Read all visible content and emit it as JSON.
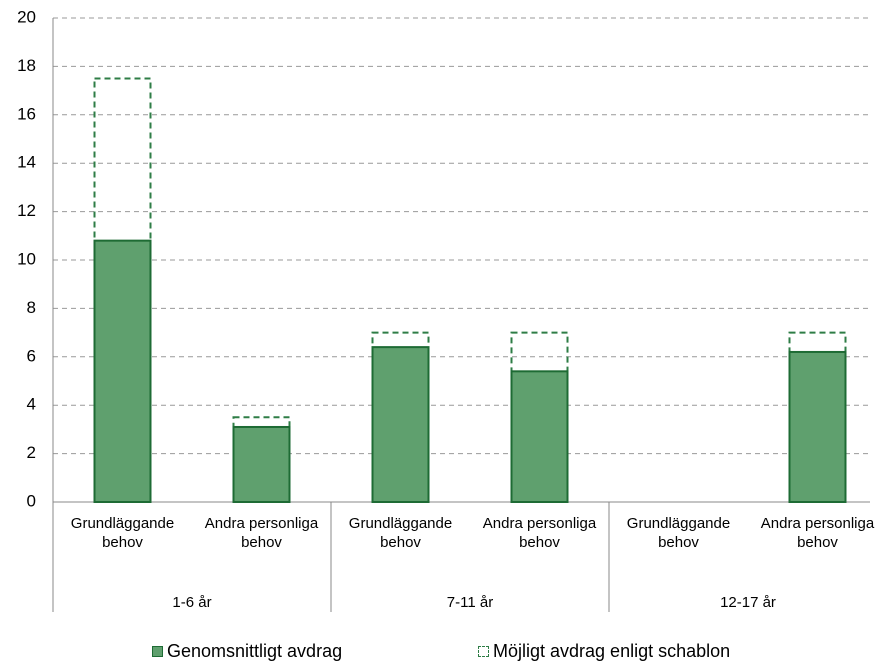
{
  "chart_data": {
    "type": "bar",
    "groups": [
      "1-6 år",
      "7-11 år",
      "12-17 år"
    ],
    "categories": [
      "Grundläggande behov",
      "Andra personliga behov",
      "Grundläggande behov",
      "Andra personliga behov",
      "Grundläggande behov",
      "Andra personliga behov"
    ],
    "series": [
      {
        "name": "Möjligt avdrag enligt schablon",
        "color": "#2e7d46",
        "dashed": true,
        "values": [
          17.5,
          3.5,
          7.0,
          7.0,
          null,
          7.0
        ]
      },
      {
        "name": "Genomsnittligt avdrag",
        "color": "#5fa06e",
        "dashed": false,
        "values": [
          10.8,
          3.1,
          6.4,
          5.4,
          null,
          6.2
        ]
      }
    ],
    "legend_order": [
      1,
      0
    ],
    "ylim": [
      0,
      20
    ],
    "yticks": [
      0,
      2,
      4,
      6,
      8,
      10,
      12,
      14,
      16,
      18,
      20
    ],
    "grid": true
  }
}
